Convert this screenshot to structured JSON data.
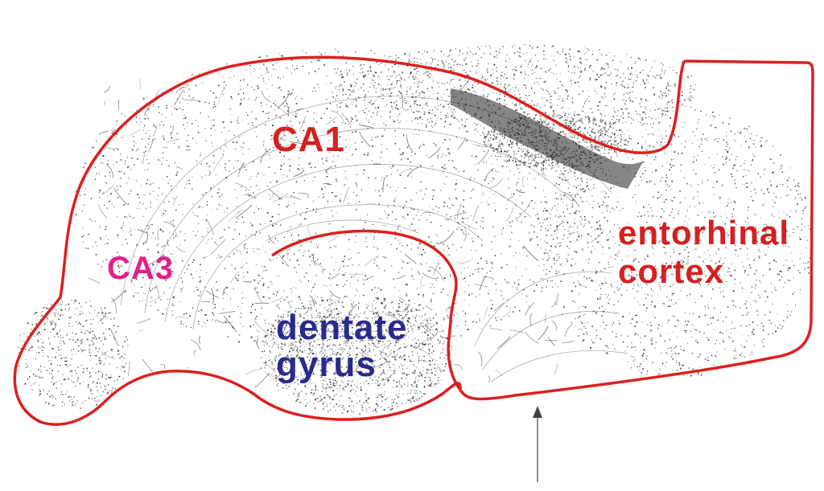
{
  "diagram": {
    "regions": [
      {
        "id": "ca1",
        "lines": [
          "CA1"
        ],
        "color": "#d42020"
      },
      {
        "id": "ca3",
        "lines": [
          "CA3"
        ],
        "color": "#e0208c"
      },
      {
        "id": "dentate",
        "lines": [
          "dentate",
          "gyrus"
        ],
        "color": "#2a2a8c"
      },
      {
        "id": "entorhinal",
        "lines": [
          "entorhinal",
          "cortex"
        ],
        "color": "#d42020"
      }
    ],
    "outline_color": "#dd1f1f",
    "stipple_color": "#222222"
  }
}
